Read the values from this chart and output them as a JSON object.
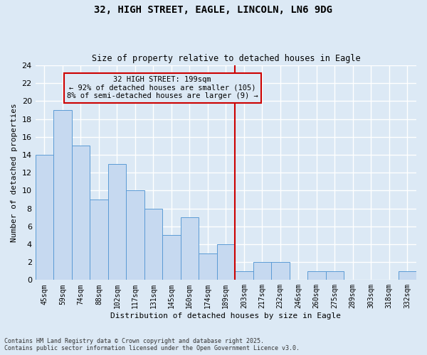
{
  "title_line1": "32, HIGH STREET, EAGLE, LINCOLN, LN6 9DG",
  "title_line2": "Size of property relative to detached houses in Eagle",
  "xlabel": "Distribution of detached houses by size in Eagle",
  "ylabel": "Number of detached properties",
  "categories": [
    "45sqm",
    "59sqm",
    "74sqm",
    "88sqm",
    "102sqm",
    "117sqm",
    "131sqm",
    "145sqm",
    "160sqm",
    "174sqm",
    "189sqm",
    "203sqm",
    "217sqm",
    "232sqm",
    "246sqm",
    "260sqm",
    "275sqm",
    "289sqm",
    "303sqm",
    "318sqm",
    "332sqm"
  ],
  "values": [
    14,
    19,
    15,
    9,
    13,
    10,
    8,
    5,
    7,
    3,
    4,
    1,
    2,
    2,
    0,
    1,
    1,
    0,
    0,
    0,
    1
  ],
  "bar_color": "#c6d9f0",
  "bar_edge_color": "#5b9bd5",
  "background_color": "#dce9f5",
  "grid_color": "#ffffff",
  "annotation_text": "32 HIGH STREET: 199sqm\n← 92% of detached houses are smaller (105)\n8% of semi-detached houses are larger (9) →",
  "vline_x_index": 10.5,
  "vline_color": "#cc0000",
  "annotation_box_color": "#cc0000",
  "footer_text": "Contains HM Land Registry data © Crown copyright and database right 2025.\nContains public sector information licensed under the Open Government Licence v3.0.",
  "ylim": [
    0,
    24
  ],
  "yticks": [
    0,
    2,
    4,
    6,
    8,
    10,
    12,
    14,
    16,
    18,
    20,
    22,
    24
  ]
}
